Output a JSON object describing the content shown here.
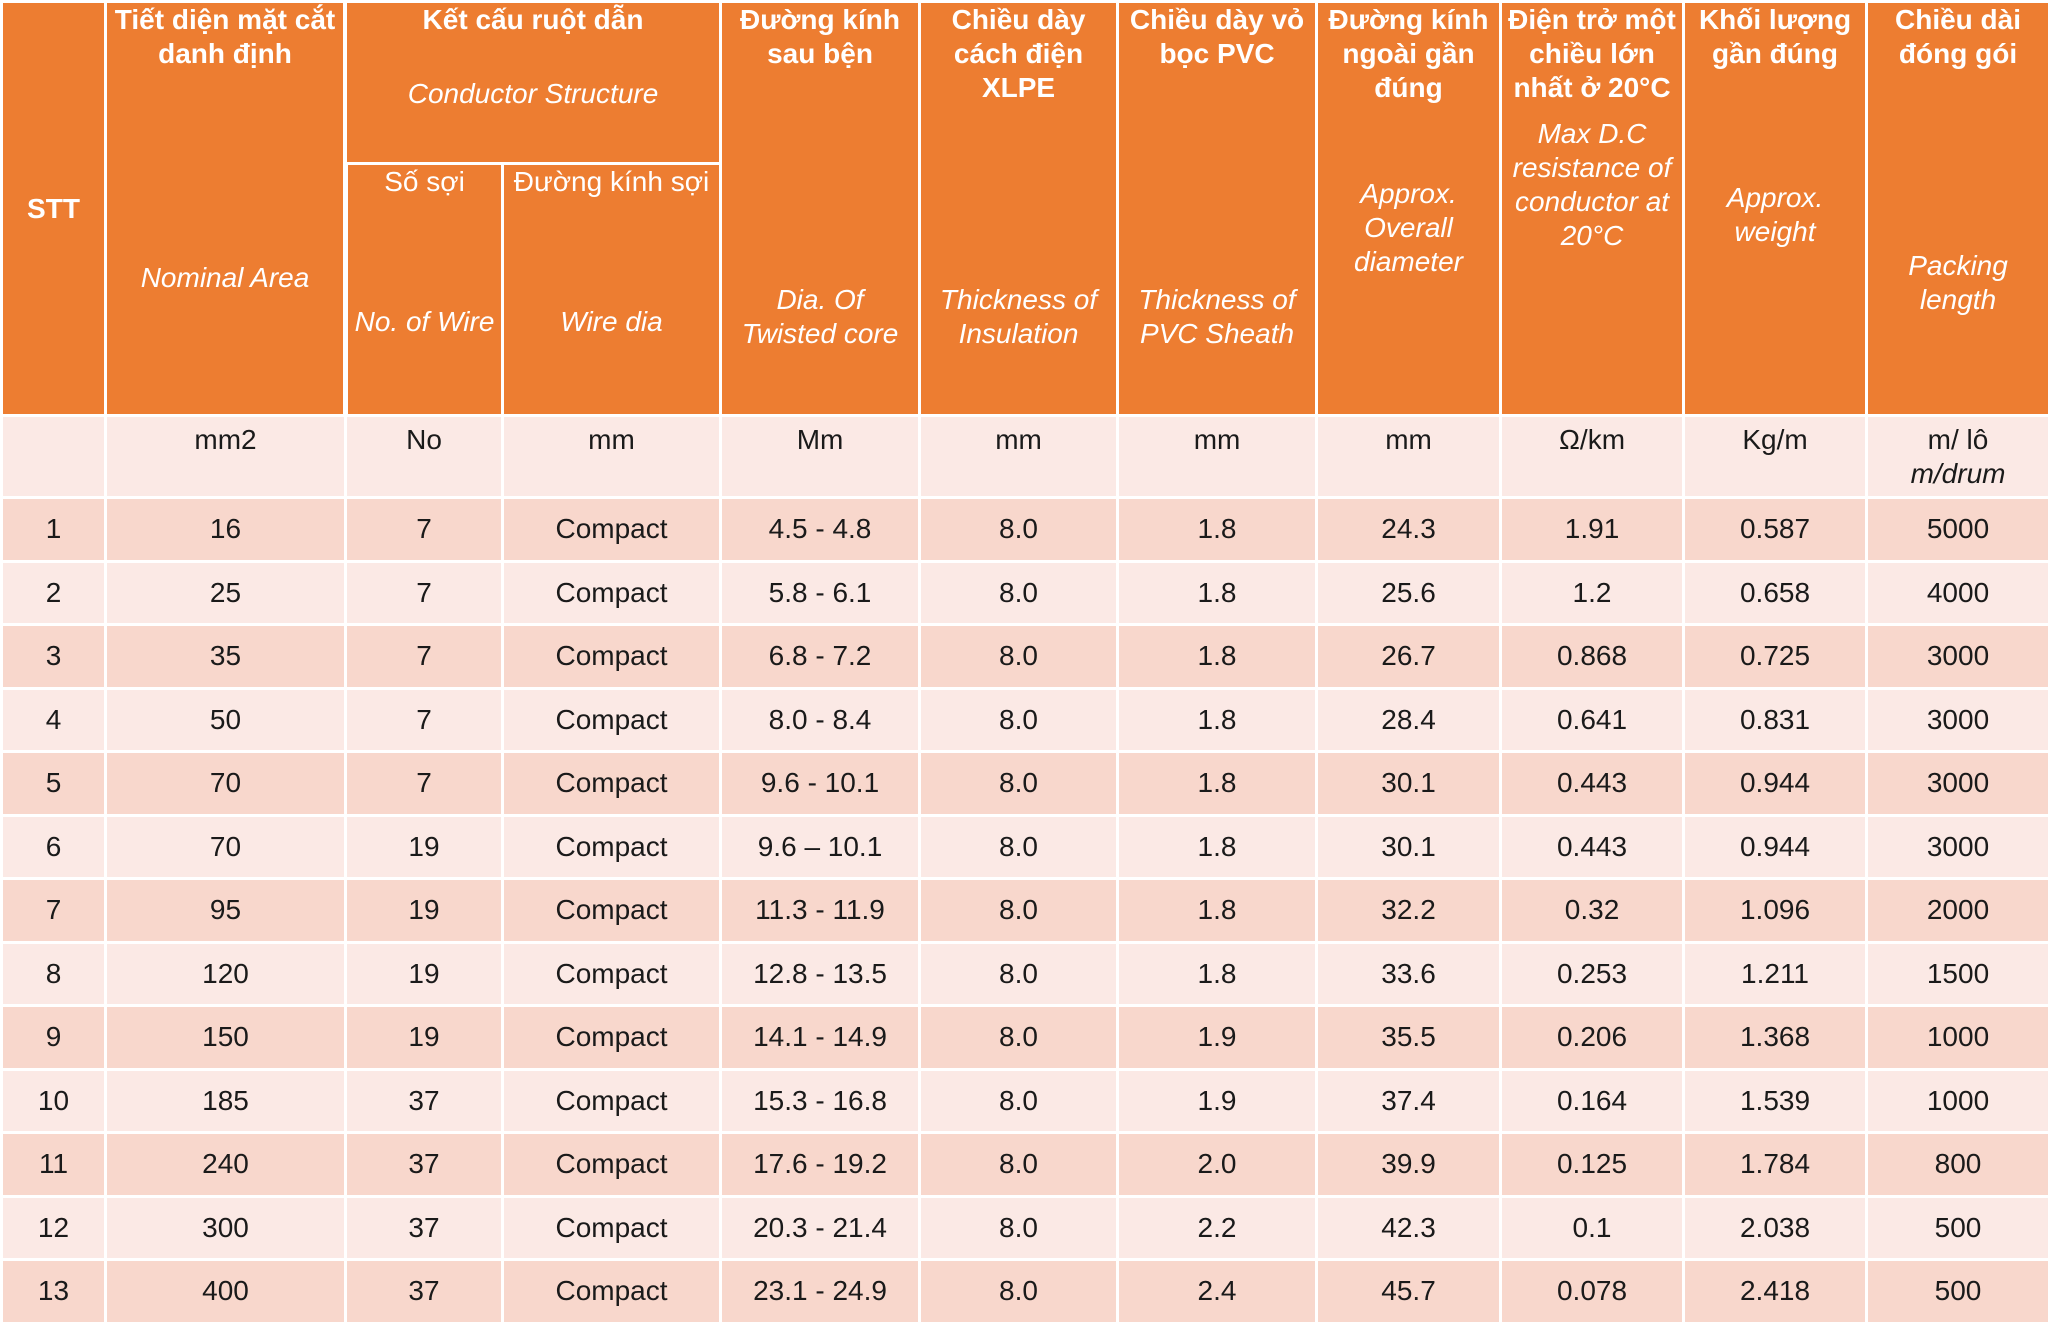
{
  "header": {
    "stt": "STT",
    "nominal_area": {
      "vn": "Tiết diện mặt cắt danh định",
      "en": "Nominal Area"
    },
    "conductor_structure": {
      "vn": "Kết cấu ruột dẫn",
      "en": "Conductor Structure"
    },
    "no_of_wire": {
      "vn": "Số sợi",
      "en": "No. of Wire"
    },
    "wire_dia": {
      "vn": "Đường kính sợi",
      "en": "Wire dia"
    },
    "twisted_core": {
      "vn": "Đường kính sau bện",
      "en": "Dia. Of Twisted core"
    },
    "insulation": {
      "vn": "Chiều dày cách điện XLPE",
      "en": "Thickness of Insulation"
    },
    "sheath": {
      "vn": "Chiều dày vỏ bọc PVC",
      "en": "Thickness of PVC Sheath"
    },
    "overall_diameter": {
      "vn": "Đường kính ngoài gần đúng",
      "en": "Approx. Overall diameter"
    },
    "resistance": {
      "vn": "Điện trở một chiều lớn nhất ở 20°C",
      "en": "Max D.C resistance of conductor at 20°C"
    },
    "weight": {
      "vn": "Khối lượng gần đúng",
      "en": "Approx. weight"
    },
    "packing": {
      "vn": "Chiều dài đóng gói",
      "en": "Packing length"
    }
  },
  "units": {
    "stt": "",
    "area": "mm2",
    "no_of_wire": "No",
    "wire_dia": "mm",
    "twisted_core": "Mm",
    "insulation": "mm",
    "sheath": "mm",
    "overall_diameter": "mm",
    "resistance": "Ω/km",
    "weight": "Kg/m",
    "packing": "m/ lô",
    "packing_en": "m/drum"
  },
  "rows": [
    [
      "1",
      "16",
      "7",
      "Compact",
      "4.5 - 4.8",
      "8.0",
      "1.8",
      "24.3",
      "1.91",
      "0.587",
      "5000"
    ],
    [
      "2",
      "25",
      "7",
      "Compact",
      "5.8 - 6.1",
      "8.0",
      "1.8",
      "25.6",
      "1.2",
      "0.658",
      "4000"
    ],
    [
      "3",
      "35",
      "7",
      "Compact",
      "6.8 - 7.2",
      "8.0",
      "1.8",
      "26.7",
      "0.868",
      "0.725",
      "3000"
    ],
    [
      "4",
      "50",
      "7",
      "Compact",
      "8.0 - 8.4",
      "8.0",
      "1.8",
      "28.4",
      "0.641",
      "0.831",
      "3000"
    ],
    [
      "5",
      "70",
      "7",
      "Compact",
      "9.6 - 10.1",
      "8.0",
      "1.8",
      "30.1",
      "0.443",
      "0.944",
      "3000"
    ],
    [
      "6",
      "70",
      "19",
      "Compact",
      "9.6 – 10.1",
      "8.0",
      "1.8",
      "30.1",
      "0.443",
      "0.944",
      "3000"
    ],
    [
      "7",
      "95",
      "19",
      "Compact",
      "11.3 - 11.9",
      "8.0",
      "1.8",
      "32.2",
      "0.32",
      "1.096",
      "2000"
    ],
    [
      "8",
      "120",
      "19",
      "Compact",
      "12.8 - 13.5",
      "8.0",
      "1.8",
      "33.6",
      "0.253",
      "1.211",
      "1500"
    ],
    [
      "9",
      "150",
      "19",
      "Compact",
      "14.1 - 14.9",
      "8.0",
      "1.9",
      "35.5",
      "0.206",
      "1.368",
      "1000"
    ],
    [
      "10",
      "185",
      "37",
      "Compact",
      "15.3 - 16.8",
      "8.0",
      "1.9",
      "37.4",
      "0.164",
      "1.539",
      "1000"
    ],
    [
      "11",
      "240",
      "37",
      "Compact",
      "17.6 - 19.2",
      "8.0",
      "2.0",
      "39.9",
      "0.125",
      "1.784",
      "800"
    ],
    [
      "12",
      "300",
      "37",
      "Compact",
      "20.3 - 21.4",
      "8.0",
      "2.2",
      "42.3",
      "0.1",
      "2.038",
      "500"
    ],
    [
      "13",
      "400",
      "37",
      "Compact",
      "23.1 - 24.9",
      "8.0",
      "2.4",
      "45.7",
      "0.078",
      "2.418",
      "500"
    ]
  ],
  "colors": {
    "header": "#ed7d31",
    "row_light": "#fbe9e5",
    "row_dark": "#f8d7cc"
  }
}
